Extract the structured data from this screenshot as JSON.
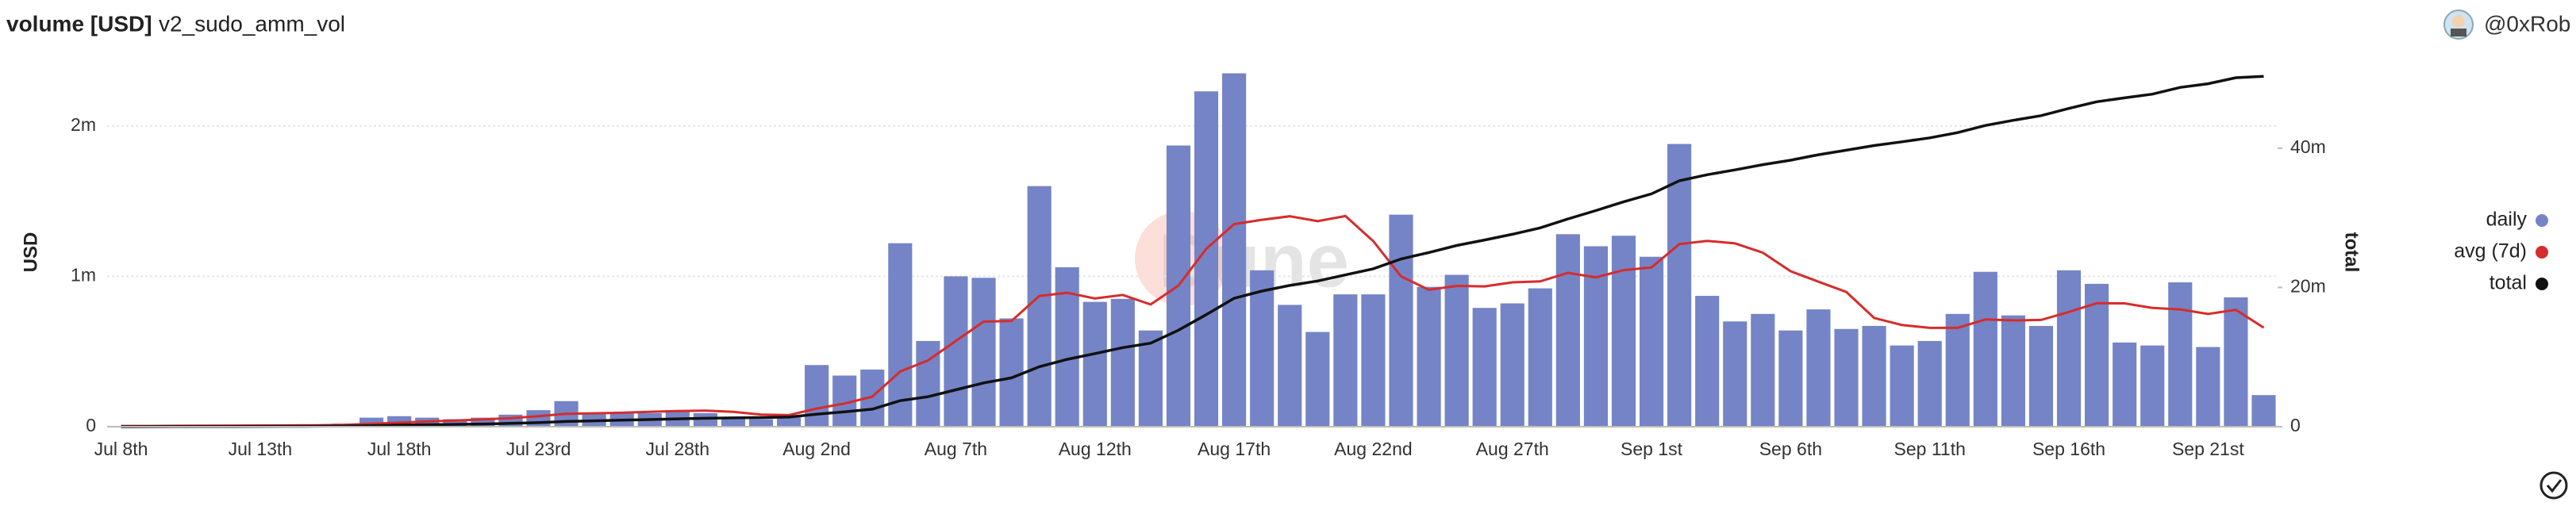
{
  "header": {
    "title": "volume [USD]",
    "query": "v2_sudo_amm_vol",
    "user": "@0xRob"
  },
  "chart_data": {
    "type": "bar",
    "watermark": "Dune",
    "ylabel": "USD",
    "y2label": "total",
    "categories": [
      "Jul 8th",
      null,
      null,
      null,
      null,
      "Jul 13th",
      null,
      null,
      null,
      null,
      "Jul 18th",
      null,
      null,
      null,
      null,
      "Jul 23rd",
      null,
      null,
      null,
      null,
      "Jul 28th",
      null,
      null,
      null,
      null,
      "Aug 2nd",
      null,
      null,
      null,
      null,
      "Aug 7th",
      null,
      null,
      null,
      null,
      "Aug 12th",
      null,
      null,
      null,
      null,
      "Aug 17th",
      null,
      null,
      null,
      null,
      "Aug 22nd",
      null,
      null,
      null,
      null,
      "Aug 27th",
      null,
      null,
      null,
      null,
      "Sep 1st",
      null,
      null,
      null,
      null,
      "Sep 6th",
      null,
      null,
      null,
      null,
      "Sep 11th",
      null,
      null,
      null,
      null,
      "Sep 16th",
      null,
      null,
      null,
      null,
      "Sep 21st",
      null,
      null
    ],
    "ylim": [
      0,
      2500000
    ],
    "yticks": [
      0,
      {
        "value": 1000000,
        "label": "1m"
      },
      {
        "value": 2000000,
        "label": "2m"
      }
    ],
    "y2lim": [
      0,
      54000000
    ],
    "y2ticks": [
      0,
      {
        "value": 20000000,
        "label": "20m"
      },
      {
        "value": 40000000,
        "label": "40m"
      }
    ],
    "grid": true,
    "legend": "right",
    "series": [
      {
        "name": "daily",
        "type": "bar",
        "color": "#7584c6",
        "values": [
          5000,
          5000,
          8000,
          10000,
          10000,
          10000,
          10000,
          15000,
          20000,
          60000,
          70000,
          60000,
          50000,
          60000,
          80000,
          110000,
          170000,
          90000,
          90000,
          90000,
          100000,
          90000,
          50000,
          50000,
          70000,
          410000,
          340000,
          380000,
          1220000,
          570000,
          1000000,
          990000,
          720000,
          1600000,
          1060000,
          830000,
          850000,
          640000,
          1870000,
          2230000,
          2350000,
          1040000,
          810000,
          630000,
          880000,
          880000,
          1410000,
          930000,
          1010000,
          790000,
          820000,
          920000,
          1280000,
          1200000,
          1270000,
          1130000,
          1880000,
          870000,
          700000,
          750000,
          640000,
          780000,
          650000,
          670000,
          540000,
          570000,
          750000,
          1030000,
          740000,
          670000,
          1040000,
          950000,
          560000,
          540000,
          960000,
          530000,
          860000,
          210000
        ]
      },
      {
        "name": "avg (7d)",
        "type": "line",
        "color": "#d62c2c",
        "values": [
          5000,
          5000,
          6000,
          7000,
          7600,
          8000,
          8300,
          9700,
          11900,
          19000,
          27000,
          35000,
          41000,
          48000,
          57000,
          70000,
          86000,
          89000,
          93000,
          99000,
          104000,
          107000,
          99000,
          80000,
          77000,
          121000,
          154000,
          200000,
          367000,
          441000,
          570000,
          699000,
          703000,
          869000,
          891000,
          853000,
          876000,
          813000,
          939000,
          1183000,
          1347000,
          1376000,
          1399000,
          1367000,
          1401000,
          1234000,
          999000,
          911000,
          936000,
          933000,
          960000,
          966000,
          1023000,
          993000,
          1041000,
          1059000,
          1214000,
          1236000,
          1219000,
          1157000,
          1034000,
          964000,
          896000,
          723000,
          676000,
          657000,
          657000,
          713000,
          707000,
          710000,
          763000,
          821000,
          820000,
          790000,
          780000,
          750000,
          777000,
          659000
        ]
      },
      {
        "name": "total",
        "type": "line",
        "axis": "y2",
        "color": "#111111",
        "values": [
          5000,
          10000,
          18000,
          28000,
          38000,
          48000,
          58000,
          73000,
          93000,
          153000,
          223000,
          283000,
          333000,
          393000,
          473000,
          583000,
          753000,
          843000,
          933000,
          1023000,
          1123000,
          1213000,
          1263000,
          1313000,
          1383000,
          1793000,
          2133000,
          2513000,
          3733000,
          4303000,
          5303000,
          6293000,
          7013000,
          8613000,
          9673000,
          10503000,
          11353000,
          11993000,
          13863000,
          16093000,
          18443000,
          19483000,
          20293000,
          20923000,
          21803000,
          22683000,
          24093000,
          25023000,
          26033000,
          26823000,
          27643000,
          28563000,
          29843000,
          31043000,
          32313000,
          33443000,
          35323000,
          36193000,
          36893000,
          37643000,
          38283000,
          39063000,
          39713000,
          40383000,
          40923000,
          41493000,
          42243000,
          43273000,
          44013000,
          44683000,
          45723000,
          46673000,
          47233000,
          47773000,
          48733000,
          49263000,
          50123000,
          50333000
        ]
      }
    ]
  }
}
